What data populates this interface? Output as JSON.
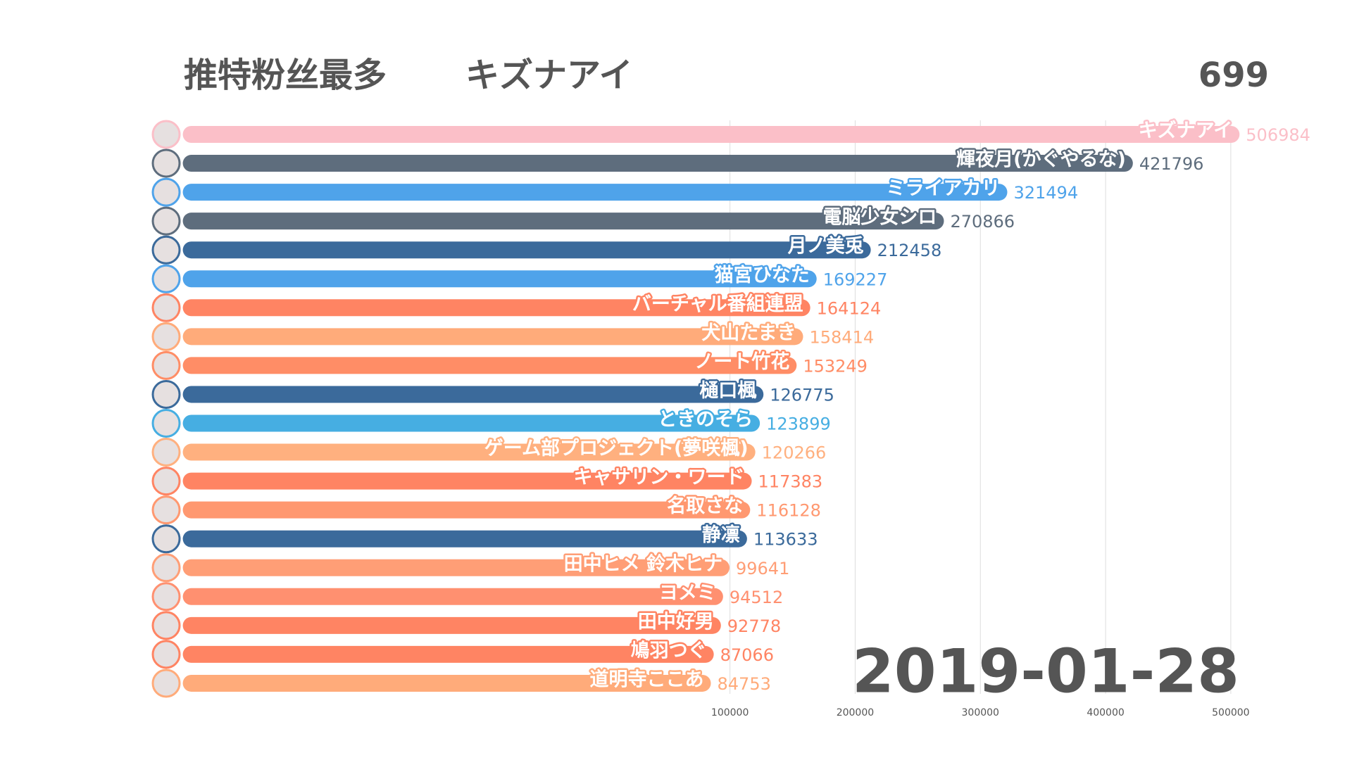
{
  "chart_data": {
    "type": "hbar",
    "title": "推特粉丝最多",
    "leader": "キズナアイ",
    "counter": "699",
    "date": "2019-01-28",
    "categories": [
      "キズナアイ",
      "輝夜月(かぐやるな)",
      "ミライアカリ",
      "電脳少女シロ",
      "月ノ美兎",
      "猫宮ひなた",
      "バーチャル番組連盟",
      "犬山たまき",
      "ノート竹花",
      "樋口楓",
      "ときのそら",
      "ゲーム部プロジェクト(夢咲楓)",
      "キャサリン・ワード",
      "名取さな",
      "静凛",
      "田中ヒメ 鈴木ヒナ",
      "ヨメミ",
      "田中好男",
      "鳩羽つぐ",
      "道明寺ここあ"
    ],
    "values": [
      506984,
      421796,
      321494,
      270866,
      212458,
      169227,
      164124,
      158414,
      153249,
      126775,
      123899,
      120266,
      117383,
      116128,
      113633,
      99641,
      94512,
      92778,
      87066,
      84753
    ],
    "colors": [
      "#fbbfc8",
      "#5e6d7d",
      "#4fa3ea",
      "#5e6d7d",
      "#3b6a9b",
      "#4fa3ea",
      "#ff8463",
      "#ffab7a",
      "#ff8d66",
      "#3b6a9b",
      "#46aee2",
      "#ffb07f",
      "#ff8463",
      "#ff9870",
      "#3b6a9b",
      "#ff9e76",
      "#ff9070",
      "#ff8463",
      "#ff8463",
      "#ffab7a"
    ],
    "xlim": [
      -337000,
      540000
    ],
    "xticks": [
      100000,
      200000,
      300000,
      400000,
      500000
    ],
    "grid": true
  }
}
